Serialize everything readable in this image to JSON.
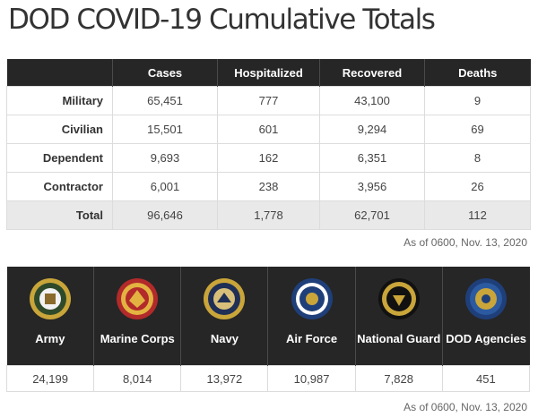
{
  "title": "DOD COVID-19 Cumulative Totals",
  "totals": {
    "headers": [
      "",
      "Cases",
      "Hospitalized",
      "Recovered",
      "Deaths"
    ],
    "rows": [
      {
        "label": "Military",
        "cases": "65,451",
        "hospitalized": "777",
        "recovered": "43,100",
        "deaths": "9"
      },
      {
        "label": "Civilian",
        "cases": "15,501",
        "hospitalized": "601",
        "recovered": "9,294",
        "deaths": "69"
      },
      {
        "label": "Dependent",
        "cases": "9,693",
        "hospitalized": "162",
        "recovered": "6,351",
        "deaths": "8"
      },
      {
        "label": "Contractor",
        "cases": "6,001",
        "hospitalized": "238",
        "recovered": "3,956",
        "deaths": "26"
      },
      {
        "label": "Total",
        "cases": "96,646",
        "hospitalized": "1,778",
        "recovered": "62,701",
        "deaths": "112"
      }
    ],
    "as_of": "As of 0600, Nov. 13, 2020"
  },
  "branches": {
    "items": [
      {
        "name": "Army",
        "value": "24,199",
        "seal": "army-seal-icon",
        "seal_color": "#c9a53a",
        "seal_inner": "#2f4a2a"
      },
      {
        "name": "Marine Corps",
        "value": "8,014",
        "seal": "marine-corps-seal-icon",
        "seal_color": "#b22a2a",
        "seal_inner": "#e3b341"
      },
      {
        "name": "Navy",
        "value": "13,972",
        "seal": "navy-seal-icon",
        "seal_color": "#c9a53a",
        "seal_inner": "#1f2f55"
      },
      {
        "name": "Air Force",
        "value": "10,987",
        "seal": "air-force-seal-icon",
        "seal_color": "#1f3f7a",
        "seal_inner": "#ffffff"
      },
      {
        "name": "National Guard",
        "value": "7,828",
        "seal": "national-guard-seal-icon",
        "seal_color": "#111111",
        "seal_inner": "#c9a53a"
      },
      {
        "name": "DOD Agencies",
        "value": "451",
        "seal": "dod-agencies-seal-icon",
        "seal_color": "#1f3f7a",
        "seal_inner": "#c9a53a"
      }
    ],
    "as_of": "As of 0600, Nov. 13, 2020"
  }
}
